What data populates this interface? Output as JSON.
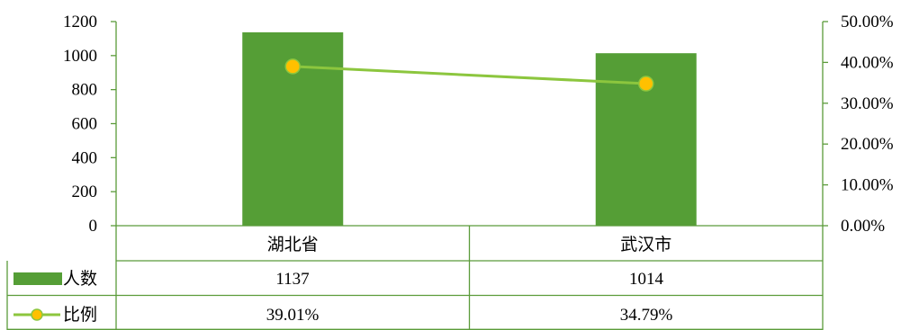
{
  "chart_data": {
    "type": "bar",
    "categories": [
      "湖北省",
      "武汉市"
    ],
    "series": [
      {
        "name": "人数",
        "type": "bar",
        "axis": "left",
        "values": [
          1137,
          1014
        ],
        "value_labels": [
          "1137",
          "1014"
        ]
      },
      {
        "name": "比例",
        "type": "line",
        "axis": "right",
        "values": [
          39.01,
          34.79
        ],
        "value_labels": [
          "39.01%",
          "34.79%"
        ]
      }
    ],
    "y_left": {
      "ylim": [
        0,
        1200
      ],
      "ticks": [
        "0",
        "200",
        "400",
        "600",
        "800",
        "1000",
        "1200"
      ]
    },
    "y_right": {
      "ylim": [
        0,
        50
      ],
      "ticks": [
        "0.00%",
        "10.00%",
        "20.00%",
        "30.00%",
        "40.00%",
        "50.00%"
      ]
    },
    "data_table": true,
    "grid": false
  },
  "colors": {
    "bar": "#559e36",
    "line": "#8cc63e",
    "marker_fill": "#ffc000",
    "marker_stroke": "#8cc63e",
    "axis": "#5b9b3a"
  }
}
